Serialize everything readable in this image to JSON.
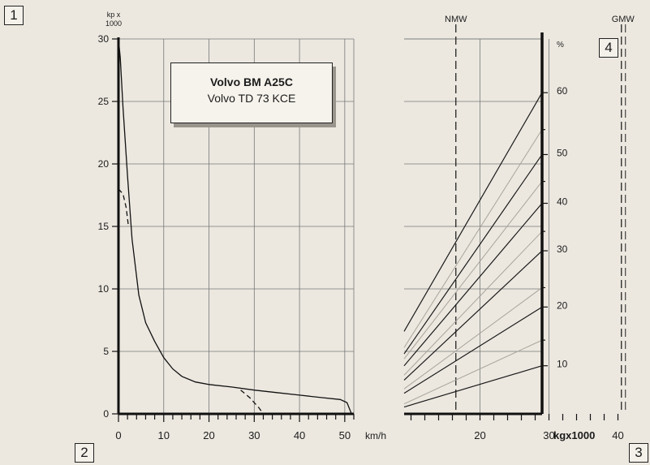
{
  "corner_labels": [
    "1",
    "2",
    "3",
    "4"
  ],
  "model_box": {
    "name": "Volvo BM A25C",
    "engine": "Volvo TD 73 KCE"
  },
  "chart_data": [
    {
      "type": "line",
      "ylabel_lines": [
        "kp x",
        "1000"
      ],
      "xunit": "km/h",
      "xlim": [
        0,
        52
      ],
      "ylim": [
        0,
        30
      ],
      "x_ticks": [
        0,
        10,
        20,
        30,
        40,
        50
      ],
      "y_ticks": [
        0,
        5,
        10,
        15,
        20,
        25,
        30
      ],
      "grid": true,
      "series": [
        {
          "style": "solid",
          "points": [
            [
              0,
              30
            ],
            [
              0.4,
              28.5
            ],
            [
              1,
              24.5
            ],
            [
              2,
              19
            ],
            [
              3,
              14
            ],
            [
              4.5,
              9.5
            ],
            [
              6,
              7.3
            ],
            [
              8,
              5.8
            ],
            [
              10,
              4.5
            ],
            [
              12,
              3.6
            ],
            [
              14,
              3.0
            ],
            [
              17,
              2.55
            ],
            [
              20,
              2.35
            ],
            [
              25,
              2.15
            ],
            [
              30,
              1.9
            ],
            [
              35,
              1.7
            ],
            [
              40,
              1.5
            ],
            [
              45,
              1.3
            ],
            [
              49,
              1.15
            ],
            [
              50.5,
              0.9
            ],
            [
              51.5,
              0
            ]
          ]
        },
        {
          "style": "dashed",
          "points": [
            [
              0,
              18
            ],
            [
              1,
              17.6
            ],
            [
              1.7,
              16.5
            ],
            [
              2.2,
              15
            ]
          ]
        },
        {
          "style": "dashed",
          "points": [
            [
              27,
              1.9
            ],
            [
              29,
              1.3
            ],
            [
              31,
              0.5
            ],
            [
              32,
              0
            ]
          ]
        }
      ]
    },
    {
      "type": "line",
      "xunit": "kgx1000",
      "yunit": "%",
      "xlim": [
        9,
        42
      ],
      "x_ticks": [
        20,
        30,
        40
      ],
      "right_ticks": [
        10,
        20,
        30,
        40,
        50,
        60
      ],
      "grid": true,
      "vertical_markers": [
        {
          "label": "NMW",
          "x": 16.5
        },
        {
          "label": "GMW",
          "x": 40.5
        }
      ],
      "lines": [
        {
          "grade": 10,
          "y_start": 0.55,
          "y_end": 3.85,
          "strong": true
        },
        {
          "grade": 15,
          "y_start": 0.8,
          "y_end": 5.9,
          "strong": false
        },
        {
          "grade": 20,
          "y_start": 1.65,
          "y_end": 8.55,
          "strong": true
        },
        {
          "grade": 25,
          "y_start": 2.0,
          "y_end": 10.1,
          "strong": false
        },
        {
          "grade": 30,
          "y_start": 2.7,
          "y_end": 13.05,
          "strong": true
        },
        {
          "grade": 35,
          "y_start": 3.1,
          "y_end": 14.6,
          "strong": false
        },
        {
          "grade": 40,
          "y_start": 3.85,
          "y_end": 16.85,
          "strong": true
        },
        {
          "grade": 45,
          "y_start": 4.4,
          "y_end": 18.6,
          "strong": false
        },
        {
          "grade": 50,
          "y_start": 4.8,
          "y_end": 20.75,
          "strong": true
        },
        {
          "grade": 55,
          "y_start": 5.3,
          "y_end": 22.75,
          "strong": false
        },
        {
          "grade": 60,
          "y_start": 6.6,
          "y_end": 25.7,
          "strong": true
        }
      ]
    }
  ]
}
